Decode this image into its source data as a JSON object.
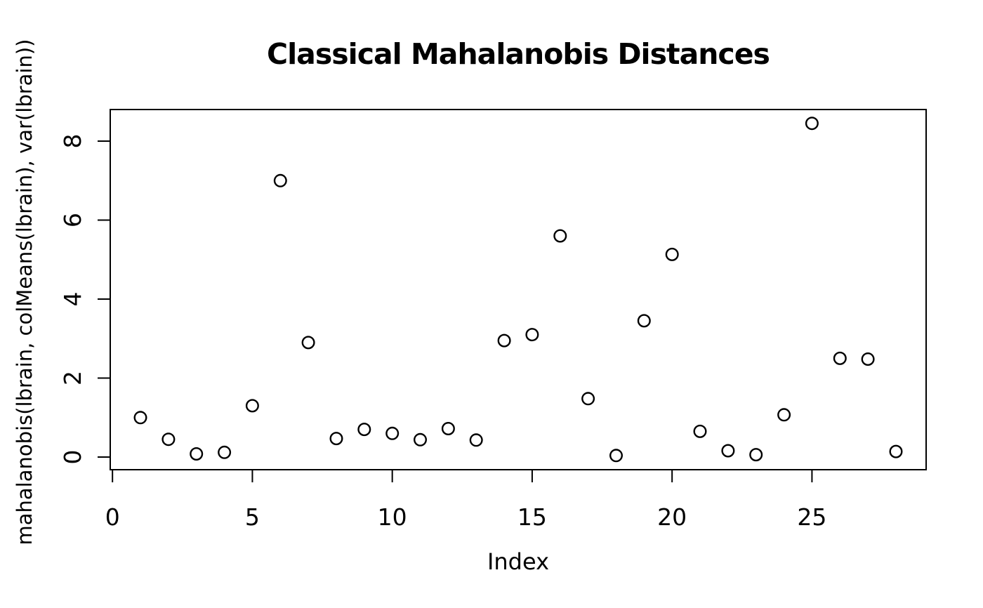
{
  "figure": {
    "background_color": "#ffffff",
    "stroke_color": "#000000"
  },
  "chart_data": {
    "type": "scatter",
    "title": "Classical Mahalanobis Distances",
    "xlabel": "Index",
    "ylabel": "mahalanobis(lbrain, colMeans(lbrain), var(lbrain))",
    "marker": "open-circle",
    "grid": false,
    "legend": null,
    "x": [
      1,
      2,
      3,
      4,
      5,
      6,
      7,
      8,
      9,
      10,
      11,
      12,
      13,
      14,
      15,
      16,
      17,
      18,
      19,
      20,
      21,
      22,
      23,
      24,
      25,
      26,
      27,
      28
    ],
    "y": [
      1.0,
      0.45,
      0.08,
      0.12,
      1.3,
      7.0,
      2.9,
      0.47,
      0.7,
      0.6,
      0.44,
      0.72,
      0.43,
      2.95,
      3.1,
      5.6,
      1.48,
      0.04,
      3.45,
      5.13,
      0.65,
      0.16,
      0.06,
      1.07,
      8.45,
      2.5,
      2.48,
      0.14
    ],
    "xlim": [
      -0.08,
      29.08
    ],
    "ylim": [
      -0.32,
      8.8
    ],
    "xticks": [
      0,
      5,
      10,
      15,
      20,
      25
    ],
    "yticks": [
      0,
      2,
      4,
      6,
      8
    ]
  }
}
